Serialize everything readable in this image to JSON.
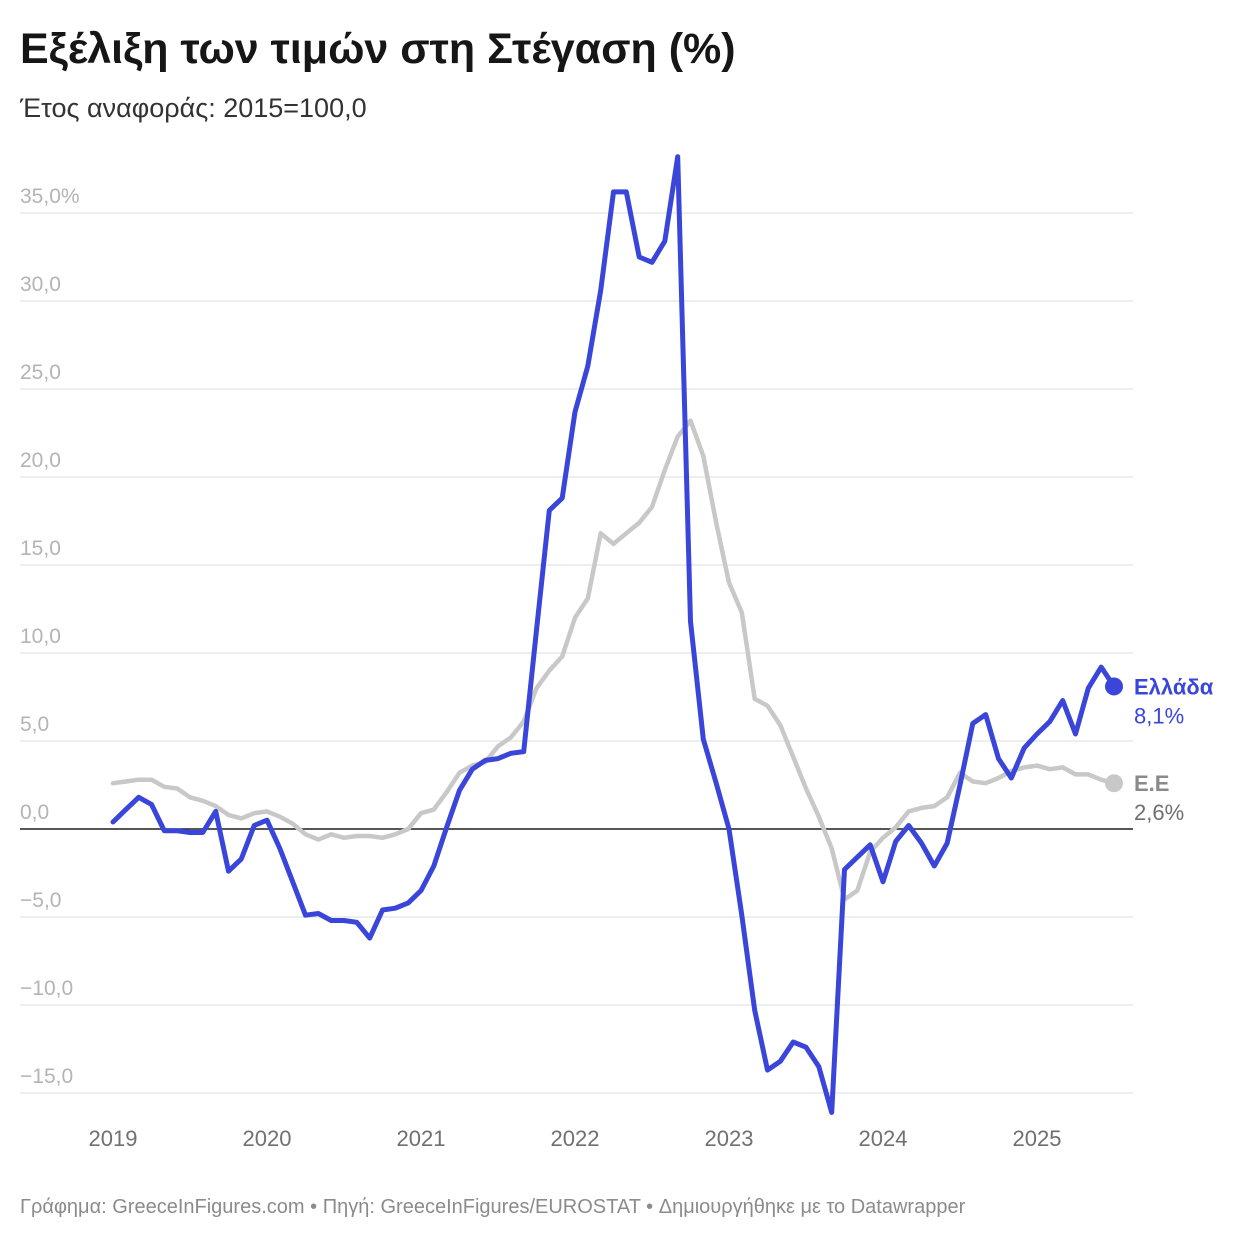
{
  "chart_data": {
    "type": "line",
    "title": "Εξέλιξη των τιμών στη Στέγαση (%)",
    "subtitle": "Έτος αναφοράς: 2015=100,0",
    "x": [
      "2019-01",
      "2019-02",
      "2019-03",
      "2019-04",
      "2019-05",
      "2019-06",
      "2019-07",
      "2019-08",
      "2019-09",
      "2019-10",
      "2019-11",
      "2019-12",
      "2020-01",
      "2020-02",
      "2020-03",
      "2020-04",
      "2020-05",
      "2020-06",
      "2020-07",
      "2020-08",
      "2020-09",
      "2020-10",
      "2020-11",
      "2020-12",
      "2021-01",
      "2021-02",
      "2021-03",
      "2021-04",
      "2021-05",
      "2021-06",
      "2021-07",
      "2021-08",
      "2021-09",
      "2021-10",
      "2021-11",
      "2021-12",
      "2022-01",
      "2022-02",
      "2022-03",
      "2022-04",
      "2022-05",
      "2022-06",
      "2022-07",
      "2022-08",
      "2022-09",
      "2022-10",
      "2022-11",
      "2022-12",
      "2023-01",
      "2023-02",
      "2023-03",
      "2023-04",
      "2023-05",
      "2023-06",
      "2023-07",
      "2023-08",
      "2023-09",
      "2023-10",
      "2023-11",
      "2023-12",
      "2024-01",
      "2024-02",
      "2024-03",
      "2024-04",
      "2024-05",
      "2024-06",
      "2024-07",
      "2024-08",
      "2024-09",
      "2024-10",
      "2024-11",
      "2024-12",
      "2025-01",
      "2025-02",
      "2025-03",
      "2025-04",
      "2025-05",
      "2025-06",
      "2025-07"
    ],
    "x_tick_labels": [
      "2019",
      "2020",
      "2021",
      "2022",
      "2023",
      "2024",
      "2025"
    ],
    "y_ticks": [
      35,
      30,
      25,
      20,
      15,
      10,
      5,
      0,
      -5,
      -10,
      -15
    ],
    "y_tick_labels": [
      "35,0%",
      "30,0",
      "25,0",
      "20,0",
      "15,0",
      "10,0",
      "5,0",
      "0,0",
      "−5,0",
      "−10,0",
      "−15,0"
    ],
    "ylim": [
      -16.5,
      38.5
    ],
    "grid": true,
    "zero_line": true,
    "legend": "right",
    "series": [
      {
        "name": "Ελλάδα",
        "color": "#3a45da",
        "label_color": "#3a45da",
        "value_color": "#3a45da",
        "end_label": "8,1%",
        "values": [
          0.4,
          1.1,
          1.8,
          1.4,
          -0.1,
          -0.1,
          -0.2,
          -0.2,
          1.0,
          -2.4,
          -1.7,
          0.2,
          0.5,
          -1.1,
          -3.0,
          -4.9,
          -4.8,
          -5.2,
          -5.2,
          -5.3,
          -6.2,
          -4.6,
          -4.5,
          -4.2,
          -3.5,
          -2.1,
          0.1,
          2.2,
          3.4,
          3.9,
          4.0,
          4.3,
          4.4,
          11.3,
          18.1,
          18.8,
          23.7,
          26.3,
          30.6,
          36.2,
          36.2,
          32.5,
          32.2,
          33.4,
          38.2,
          11.8,
          5.1,
          2.6,
          0.0,
          -4.9,
          -10.3,
          -13.7,
          -13.2,
          -12.1,
          -12.4,
          -13.5,
          -16.1,
          -2.3,
          -1.6,
          -0.9,
          -3.0,
          -0.7,
          0.2,
          -0.8,
          -2.1,
          -0.8,
          2.5,
          6.0,
          6.5,
          4.0,
          2.9,
          4.6,
          5.4,
          6.1,
          7.3,
          5.4,
          8.0,
          9.2,
          8.1
        ]
      },
      {
        "name": "Ε.Ε",
        "color": "#c8c8c8",
        "label_color": "#8a8a8a",
        "value_color": "#6f6f6f",
        "end_label": "2,6%",
        "values": [
          2.6,
          2.7,
          2.8,
          2.8,
          2.4,
          2.3,
          1.8,
          1.6,
          1.3,
          0.8,
          0.6,
          0.9,
          1.0,
          0.7,
          0.3,
          -0.3,
          -0.6,
          -0.3,
          -0.5,
          -0.4,
          -0.4,
          -0.5,
          -0.3,
          0.0,
          0.9,
          1.1,
          2.1,
          3.2,
          3.6,
          3.8,
          4.7,
          5.2,
          6.1,
          8.0,
          9.0,
          9.8,
          12.0,
          13.1,
          16.8,
          16.2,
          16.8,
          17.4,
          18.3,
          20.4,
          22.3,
          23.2,
          21.2,
          17.4,
          14.0,
          12.3,
          7.4,
          7.0,
          5.9,
          4.1,
          2.3,
          0.7,
          -1.1,
          -4.0,
          -3.5,
          -1.3,
          -0.5,
          0.1,
          1.0,
          1.2,
          1.3,
          1.8,
          3.2,
          2.7,
          2.6,
          2.9,
          3.3,
          3.5,
          3.6,
          3.4,
          3.5,
          3.1,
          3.1,
          2.8,
          2.6
        ]
      }
    ]
  },
  "footer": {
    "byline": "Γράφημα: GreeceInFigures.com",
    "separator": "•",
    "source": "Πηγή: GreeceInFigures/EUROSTAT",
    "made_with": "Δημιουργήθηκε με το Datawrapper"
  }
}
